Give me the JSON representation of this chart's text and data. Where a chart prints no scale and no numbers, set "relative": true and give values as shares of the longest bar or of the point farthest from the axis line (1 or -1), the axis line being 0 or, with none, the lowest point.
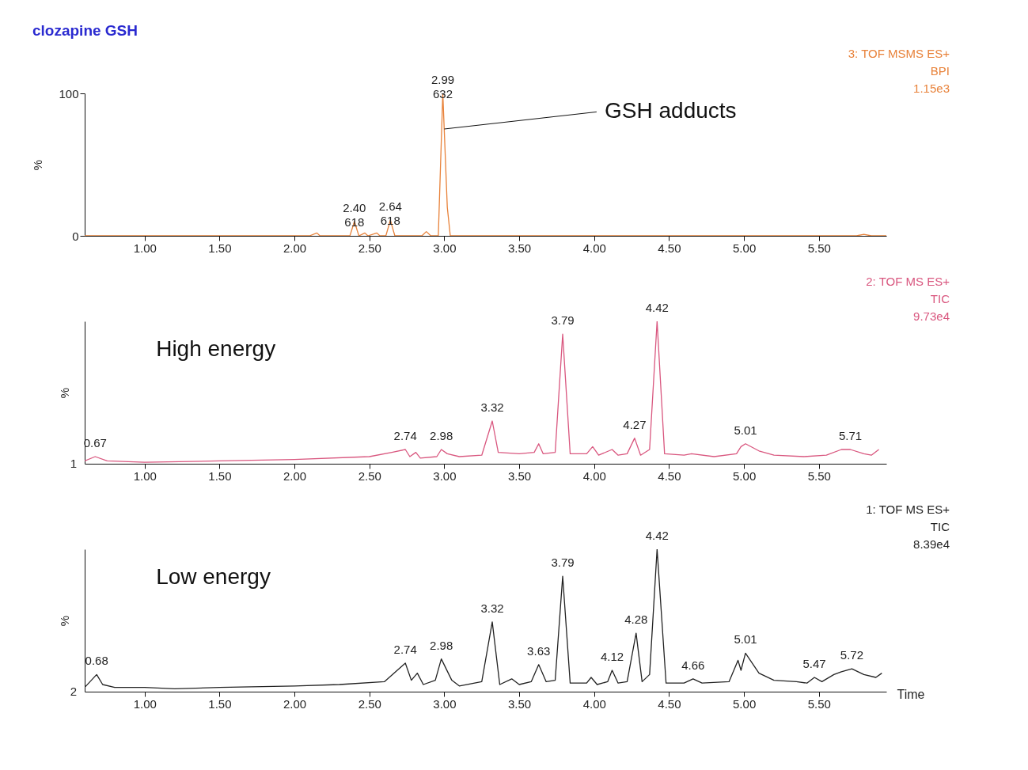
{
  "chart_data": [
    {
      "type": "line",
      "title": "clozapine GSH",
      "subtitle": "3: TOF MSMS ES+\nBPI\n1.15e3",
      "ylabel": "%",
      "xlim": [
        0.6,
        5.95
      ],
      "ylim": [
        0,
        100
      ],
      "yticks": [
        0,
        100
      ],
      "xticks": [
        {
          "value": 1,
          "label": "1.00"
        },
        {
          "value": 1.5,
          "label": "1.50"
        },
        {
          "value": 2,
          "label": "2.00"
        },
        {
          "value": 2.5,
          "label": "2.50"
        },
        {
          "value": 3,
          "label": "3.00"
        },
        {
          "value": 3.5,
          "label": "3.50"
        },
        {
          "value": 4,
          "label": "4.00"
        },
        {
          "value": 4.5,
          "label": "4.50"
        },
        {
          "value": 5,
          "label": "5.00"
        },
        {
          "value": 5.5,
          "label": "5.50"
        }
      ],
      "grid": false,
      "series": [
        {
          "color": "#e8823a",
          "x": [
            0.6,
            2.1,
            2.15,
            2.17,
            2.37,
            2.4,
            2.43,
            2.47,
            2.49,
            2.55,
            2.57,
            2.61,
            2.64,
            2.67,
            2.85,
            2.88,
            2.91,
            2.96,
            2.99,
            3.02,
            3.04,
            5.75,
            5.8,
            5.85,
            5.95
          ],
          "values": [
            0,
            0,
            2,
            0,
            0,
            10,
            0,
            2,
            0,
            2,
            0,
            0,
            11,
            0,
            0,
            3,
            0,
            0,
            100,
            20,
            0,
            0,
            1,
            0,
            0
          ]
        }
      ],
      "annotations": [
        {
          "text": "2.40\n618",
          "x": 2.4,
          "y": 10
        },
        {
          "text": "2.64\n618",
          "x": 2.64,
          "y": 11
        },
        {
          "text": "2.99\n632",
          "x": 2.99,
          "y": 100
        },
        {
          "text": "GSH adducts",
          "x": 3.0,
          "y": 75
        }
      ]
    },
    {
      "type": "line",
      "title": "High energy",
      "subtitle": "2: TOF MS ES+\nTIC\n9.73e4",
      "ylabel": "%",
      "relative": true,
      "xlim": [
        0.6,
        5.95
      ],
      "xticks": [
        {
          "value": 1,
          "label": "1.00"
        },
        {
          "value": 1.5,
          "label": "1.50"
        },
        {
          "value": 2,
          "label": "2.00"
        },
        {
          "value": 2.5,
          "label": "2.50"
        },
        {
          "value": 3,
          "label": "3.00"
        },
        {
          "value": 3.5,
          "label": "3.50"
        },
        {
          "value": 4,
          "label": "4.00"
        },
        {
          "value": 4.5,
          "label": "4.50"
        },
        {
          "value": 5,
          "label": "5.00"
        },
        {
          "value": 5.5,
          "label": "5.50"
        }
      ],
      "grid": false,
      "series": [
        {
          "color": "#d9577f",
          "x": [
            0.6,
            0.67,
            0.75,
            1.0,
            1.5,
            2.0,
            2.5,
            2.65,
            2.74,
            2.77,
            2.81,
            2.84,
            2.95,
            2.98,
            3.02,
            3.1,
            3.25,
            3.32,
            3.36,
            3.5,
            3.6,
            3.63,
            3.66,
            3.74,
            3.79,
            3.84,
            3.95,
            3.99,
            4.03,
            4.12,
            4.16,
            4.22,
            4.27,
            4.31,
            4.37,
            4.42,
            4.47,
            4.6,
            4.65,
            4.8,
            4.95,
            4.98,
            5.01,
            5.1,
            5.2,
            5.4,
            5.55,
            5.65,
            5.71,
            5.8,
            5.85,
            5.9
          ],
          "values": [
            0.02,
            0.05,
            0.02,
            0.01,
            0.02,
            0.03,
            0.05,
            0.08,
            0.1,
            0.05,
            0.08,
            0.04,
            0.05,
            0.1,
            0.07,
            0.05,
            0.06,
            0.3,
            0.08,
            0.07,
            0.08,
            0.14,
            0.07,
            0.08,
            0.91,
            0.07,
            0.07,
            0.12,
            0.06,
            0.1,
            0.06,
            0.07,
            0.18,
            0.06,
            0.1,
            1,
            0.07,
            0.06,
            0.07,
            0.05,
            0.07,
            0.12,
            0.14,
            0.09,
            0.06,
            0.05,
            0.06,
            0.1,
            0.1,
            0.07,
            0.06,
            0.1
          ]
        }
      ],
      "annotations": [
        {
          "text": "0.67",
          "x": 0.67,
          "y": 0.05
        },
        {
          "text": "2.74",
          "x": 2.74,
          "y": 0.1
        },
        {
          "text": "2.98",
          "x": 2.98,
          "y": 0.1
        },
        {
          "text": "3.32",
          "x": 3.32,
          "y": 0.3
        },
        {
          "text": "3.79",
          "x": 3.79,
          "y": 0.91
        },
        {
          "text": "4.27",
          "x": 4.27,
          "y": 0.18
        },
        {
          "text": "4.42",
          "x": 4.42,
          "y": 1
        },
        {
          "text": "5.01",
          "x": 5.01,
          "y": 0.14
        },
        {
          "text": "5.71",
          "x": 5.71,
          "y": 0.1
        },
        "1"
      ]
    },
    {
      "type": "line",
      "title": "Low energy",
      "subtitle": "1: TOF MS ES+\nTIC\n8.39e4",
      "ylabel": "%",
      "xlabel": "Time",
      "relative": true,
      "xlim": [
        0.6,
        5.95
      ],
      "xticks": [
        {
          "value": 1,
          "label": "1.00"
        },
        {
          "value": 1.5,
          "label": "1.50"
        },
        {
          "value": 2,
          "label": "2.00"
        },
        {
          "value": 2.5,
          "label": "2.50"
        },
        {
          "value": 3,
          "label": "3.00"
        },
        {
          "value": 3.5,
          "label": "3.50"
        },
        {
          "value": 4,
          "label": "4.00"
        },
        {
          "value": 4.5,
          "label": "4.50"
        },
        {
          "value": 5,
          "label": "5.00"
        },
        {
          "value": 5.5,
          "label": "5.50"
        }
      ],
      "grid": false,
      "series": [
        {
          "color": "#222222",
          "x": [
            0.6,
            0.68,
            0.72,
            0.8,
            1.0,
            1.2,
            1.5,
            2.0,
            2.3,
            2.6,
            2.74,
            2.78,
            2.82,
            2.86,
            2.94,
            2.98,
            3.05,
            3.1,
            3.25,
            3.32,
            3.37,
            3.45,
            3.5,
            3.58,
            3.63,
            3.68,
            3.74,
            3.79,
            3.84,
            3.95,
            3.98,
            4.02,
            4.09,
            4.12,
            4.16,
            4.22,
            4.28,
            4.32,
            4.37,
            4.42,
            4.48,
            4.6,
            4.66,
            4.72,
            4.9,
            4.96,
            4.98,
            5.01,
            5.1,
            5.2,
            5.35,
            5.42,
            5.47,
            5.52,
            5.6,
            5.65,
            5.72,
            5.8,
            5.88,
            5.92
          ],
          "values": [
            0.03,
            0.12,
            0.05,
            0.03,
            0.03,
            0.02,
            0.03,
            0.04,
            0.05,
            0.07,
            0.2,
            0.08,
            0.13,
            0.05,
            0.08,
            0.23,
            0.08,
            0.04,
            0.07,
            0.49,
            0.05,
            0.09,
            0.05,
            0.07,
            0.19,
            0.07,
            0.08,
            0.81,
            0.06,
            0.06,
            0.1,
            0.05,
            0.07,
            0.15,
            0.06,
            0.07,
            0.41,
            0.07,
            0.12,
            1,
            0.06,
            0.06,
            0.09,
            0.06,
            0.07,
            0.22,
            0.15,
            0.27,
            0.13,
            0.08,
            0.07,
            0.06,
            0.1,
            0.07,
            0.12,
            0.14,
            0.16,
            0.12,
            0.1,
            0.13
          ]
        }
      ],
      "annotations": [
        {
          "text": "0.68",
          "x": 0.68,
          "y": 0.12
        },
        {
          "text": "2.74",
          "x": 2.74,
          "y": 0.2
        },
        {
          "text": "2.98",
          "x": 2.98,
          "y": 0.23
        },
        {
          "text": "3.32",
          "x": 3.32,
          "y": 0.49
        },
        {
          "text": "3.63",
          "x": 3.63,
          "y": 0.19
        },
        {
          "text": "3.79",
          "x": 3.79,
          "y": 0.81
        },
        {
          "text": "4.12",
          "x": 4.12,
          "y": 0.15
        },
        {
          "text": "4.28",
          "x": 4.28,
          "y": 0.41
        },
        {
          "text": "4.42",
          "x": 4.42,
          "y": 1
        },
        {
          "text": "4.66",
          "x": 4.66,
          "y": 0.09
        },
        {
          "text": "5.01",
          "x": 5.01,
          "y": 0.27
        },
        {
          "text": "5.47",
          "x": 5.47,
          "y": 0.1
        },
        {
          "text": "5.72",
          "x": 5.72,
          "y": 0.16
        },
        "2"
      ]
    }
  ]
}
